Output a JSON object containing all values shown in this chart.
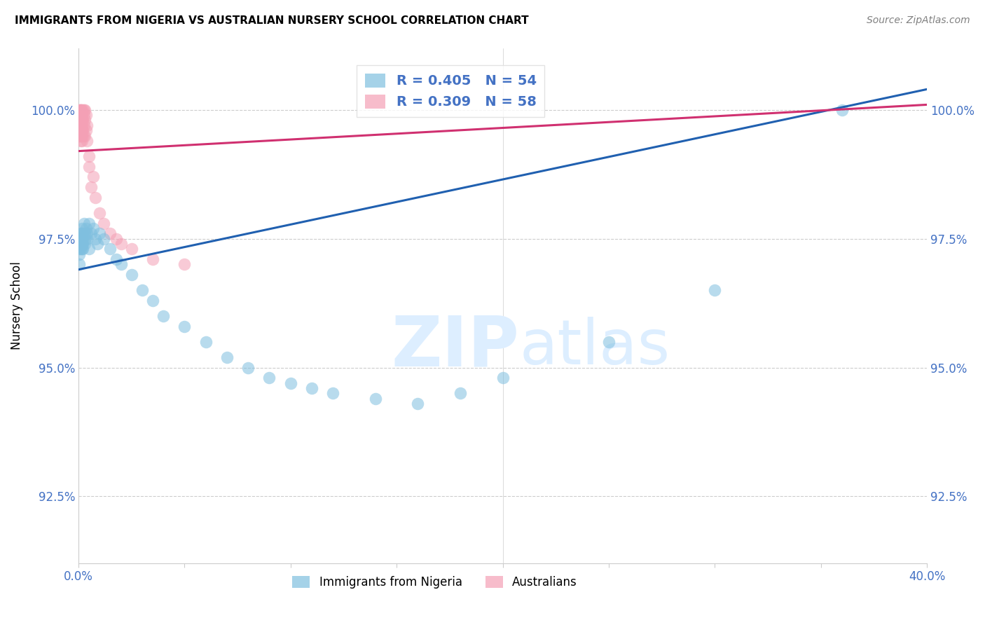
{
  "title": "IMMIGRANTS FROM NIGERIA VS AUSTRALIAN NURSERY SCHOOL CORRELATION CHART",
  "source": "Source: ZipAtlas.com",
  "ylabel": "Nursery School",
  "ytick_values": [
    92.5,
    95.0,
    97.5,
    100.0
  ],
  "xlim": [
    0.0,
    40.0
  ],
  "ylim": [
    91.2,
    101.2
  ],
  "legend_blue_label": "Immigrants from Nigeria",
  "legend_pink_label": "Australians",
  "legend_R_blue": "R = 0.405",
  "legend_N_blue": "N = 54",
  "legend_R_pink": "R = 0.309",
  "legend_N_pink": "N = 58",
  "blue_color": "#7fbfdf",
  "pink_color": "#f4a0b5",
  "trendline_blue_color": "#2060b0",
  "trendline_pink_color": "#d03070",
  "watermark_text": "ZIPatlas",
  "watermark_color": "#ddeeff",
  "background_color": "#ffffff",
  "nigeria_x": [
    0.05,
    0.05,
    0.05,
    0.05,
    0.08,
    0.1,
    0.1,
    0.1,
    0.12,
    0.15,
    0.15,
    0.15,
    0.18,
    0.2,
    0.2,
    0.2,
    0.2,
    0.25,
    0.3,
    0.3,
    0.3,
    0.35,
    0.4,
    0.4,
    0.5,
    0.5,
    0.6,
    0.7,
    0.8,
    0.9,
    1.0,
    1.2,
    1.5,
    1.8,
    2.0,
    2.5,
    3.0,
    3.5,
    4.0,
    5.0,
    6.0,
    7.0,
    8.0,
    9.0,
    10.0,
    11.0,
    12.0,
    14.0,
    16.0,
    18.0,
    20.0,
    25.0,
    30.0,
    36.0
  ],
  "nigeria_y": [
    97.5,
    97.3,
    97.2,
    97.0,
    97.6,
    97.4,
    97.5,
    97.3,
    97.6,
    97.5,
    97.4,
    97.3,
    97.7,
    97.6,
    97.5,
    97.4,
    97.3,
    97.8,
    97.6,
    97.5,
    97.4,
    97.7,
    97.6,
    97.5,
    97.8,
    97.3,
    97.6,
    97.7,
    97.5,
    97.4,
    97.6,
    97.5,
    97.3,
    97.1,
    97.0,
    96.8,
    96.5,
    96.3,
    96.0,
    95.8,
    95.5,
    95.2,
    95.0,
    94.8,
    94.7,
    94.6,
    94.5,
    94.4,
    94.3,
    94.5,
    94.8,
    95.5,
    96.5,
    100.0
  ],
  "australia_x": [
    0.02,
    0.03,
    0.04,
    0.05,
    0.05,
    0.05,
    0.06,
    0.06,
    0.07,
    0.08,
    0.08,
    0.08,
    0.09,
    0.09,
    0.1,
    0.1,
    0.1,
    0.1,
    0.12,
    0.12,
    0.12,
    0.13,
    0.13,
    0.14,
    0.14,
    0.15,
    0.15,
    0.15,
    0.16,
    0.17,
    0.18,
    0.2,
    0.2,
    0.2,
    0.22,
    0.25,
    0.25,
    0.25,
    0.3,
    0.3,
    0.3,
    0.35,
    0.35,
    0.4,
    0.4,
    0.5,
    0.5,
    0.6,
    0.7,
    0.8,
    1.0,
    1.2,
    1.5,
    1.8,
    2.0,
    2.5,
    3.5,
    5.0
  ],
  "australia_y": [
    99.5,
    99.7,
    99.8,
    99.6,
    99.8,
    100.0,
    99.7,
    99.9,
    99.5,
    99.8,
    99.6,
    100.0,
    99.4,
    99.7,
    99.6,
    99.8,
    100.0,
    99.5,
    99.7,
    99.9,
    100.0,
    99.5,
    99.8,
    99.6,
    100.0,
    99.7,
    99.5,
    99.9,
    99.8,
    99.6,
    99.4,
    99.8,
    99.6,
    100.0,
    99.5,
    99.7,
    99.9,
    100.0,
    99.5,
    99.8,
    100.0,
    99.6,
    99.9,
    99.4,
    99.7,
    98.9,
    99.1,
    98.5,
    98.7,
    98.3,
    98.0,
    97.8,
    97.6,
    97.5,
    97.4,
    97.3,
    97.1,
    97.0
  ],
  "trendline_blue_x0": 0.0,
  "trendline_blue_y0": 96.9,
  "trendline_blue_x1": 40.0,
  "trendline_blue_y1": 100.4,
  "trendline_pink_x0": 0.0,
  "trendline_pink_y0": 99.2,
  "trendline_pink_x1": 40.0,
  "trendline_pink_y1": 100.1
}
